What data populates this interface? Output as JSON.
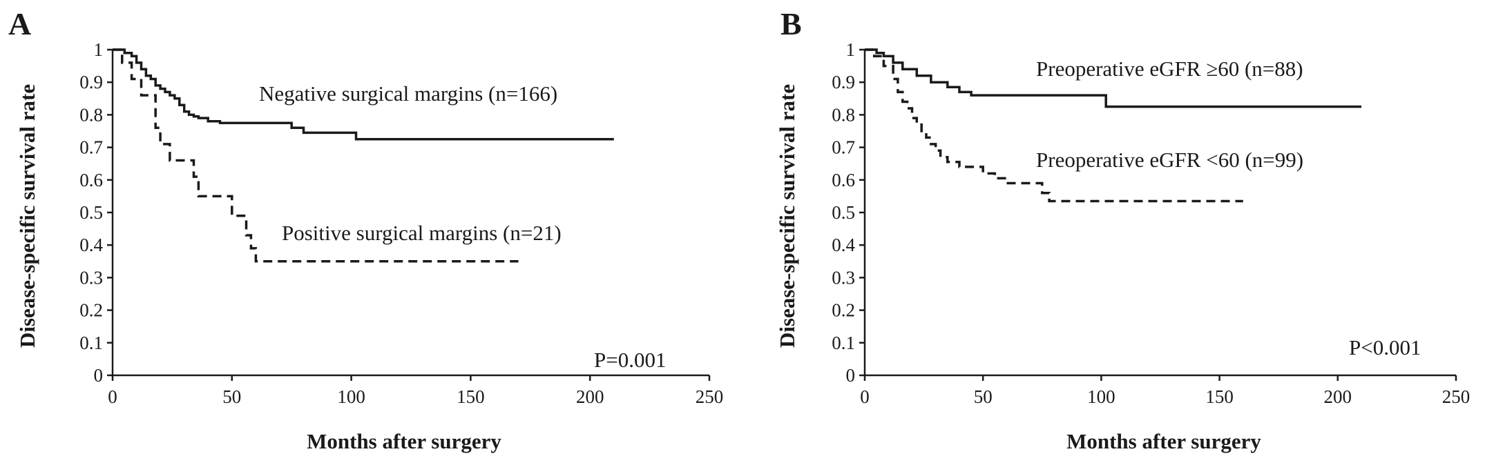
{
  "chart_data": [
    {
      "type": "line",
      "panel": "A",
      "xlabel": "Months after surgery",
      "ylabel": "Disease-specific survival rate",
      "xlim": [
        0,
        250
      ],
      "ylim": [
        0,
        1
      ],
      "x_ticks": [
        "0",
        "50",
        "100",
        "150",
        "200",
        "250"
      ],
      "y_ticks": [
        "0",
        "0.1",
        "0.2",
        "0.3",
        "0.4",
        "0.5",
        "0.6",
        "0.7",
        "0.8",
        "0.9",
        "1"
      ],
      "grid": false,
      "p_value": "P=0.001",
      "series": [
        {
          "name": "Negative surgical margins (n=166)",
          "style": "solid",
          "x": [
            0,
            5,
            8,
            10,
            12,
            14,
            16,
            18,
            20,
            22,
            24,
            26,
            28,
            30,
            32,
            34,
            36,
            40,
            45,
            75,
            80,
            102,
            210
          ],
          "y": [
            1.0,
            0.99,
            0.98,
            0.96,
            0.94,
            0.92,
            0.91,
            0.89,
            0.88,
            0.87,
            0.86,
            0.85,
            0.83,
            0.81,
            0.8,
            0.795,
            0.79,
            0.78,
            0.775,
            0.76,
            0.745,
            0.725,
            0.725
          ]
        },
        {
          "name": "Positive surgical margins (n=21)",
          "style": "dashed",
          "x": [
            0,
            4,
            8,
            12,
            18,
            20,
            24,
            34,
            36,
            50,
            56,
            58,
            60,
            170
          ],
          "y": [
            1.0,
            0.96,
            0.91,
            0.86,
            0.76,
            0.71,
            0.66,
            0.61,
            0.55,
            0.49,
            0.43,
            0.39,
            0.35,
            0.35
          ]
        }
      ]
    },
    {
      "type": "line",
      "panel": "B",
      "xlabel": "Months after surgery",
      "ylabel": "Disease-specific survival rate",
      "xlim": [
        0,
        250
      ],
      "ylim": [
        0,
        1
      ],
      "x_ticks": [
        "0",
        "50",
        "100",
        "150",
        "200",
        "250"
      ],
      "y_ticks": [
        "0",
        "0.1",
        "0.2",
        "0.3",
        "0.4",
        "0.5",
        "0.6",
        "0.7",
        "0.8",
        "0.9",
        "1"
      ],
      "grid": false,
      "p_value": "P<0.001",
      "series": [
        {
          "name": "Preoperative eGFR ≥60 (n=88)",
          "style": "solid",
          "x": [
            0,
            5,
            8,
            12,
            16,
            22,
            28,
            35,
            40,
            45,
            102,
            210
          ],
          "y": [
            1.0,
            0.99,
            0.98,
            0.96,
            0.94,
            0.92,
            0.9,
            0.885,
            0.87,
            0.86,
            0.825,
            0.825
          ]
        },
        {
          "name": "Preoperative eGFR <60 (n=99)",
          "style": "dashed",
          "x": [
            0,
            4,
            8,
            12,
            14,
            16,
            18,
            20,
            22,
            24,
            26,
            28,
            30,
            32,
            35,
            40,
            50,
            55,
            60,
            75,
            78,
            160
          ],
          "y": [
            1.0,
            0.98,
            0.95,
            0.91,
            0.87,
            0.84,
            0.82,
            0.79,
            0.77,
            0.75,
            0.73,
            0.71,
            0.69,
            0.67,
            0.655,
            0.64,
            0.62,
            0.605,
            0.59,
            0.56,
            0.535,
            0.535
          ]
        }
      ]
    }
  ]
}
